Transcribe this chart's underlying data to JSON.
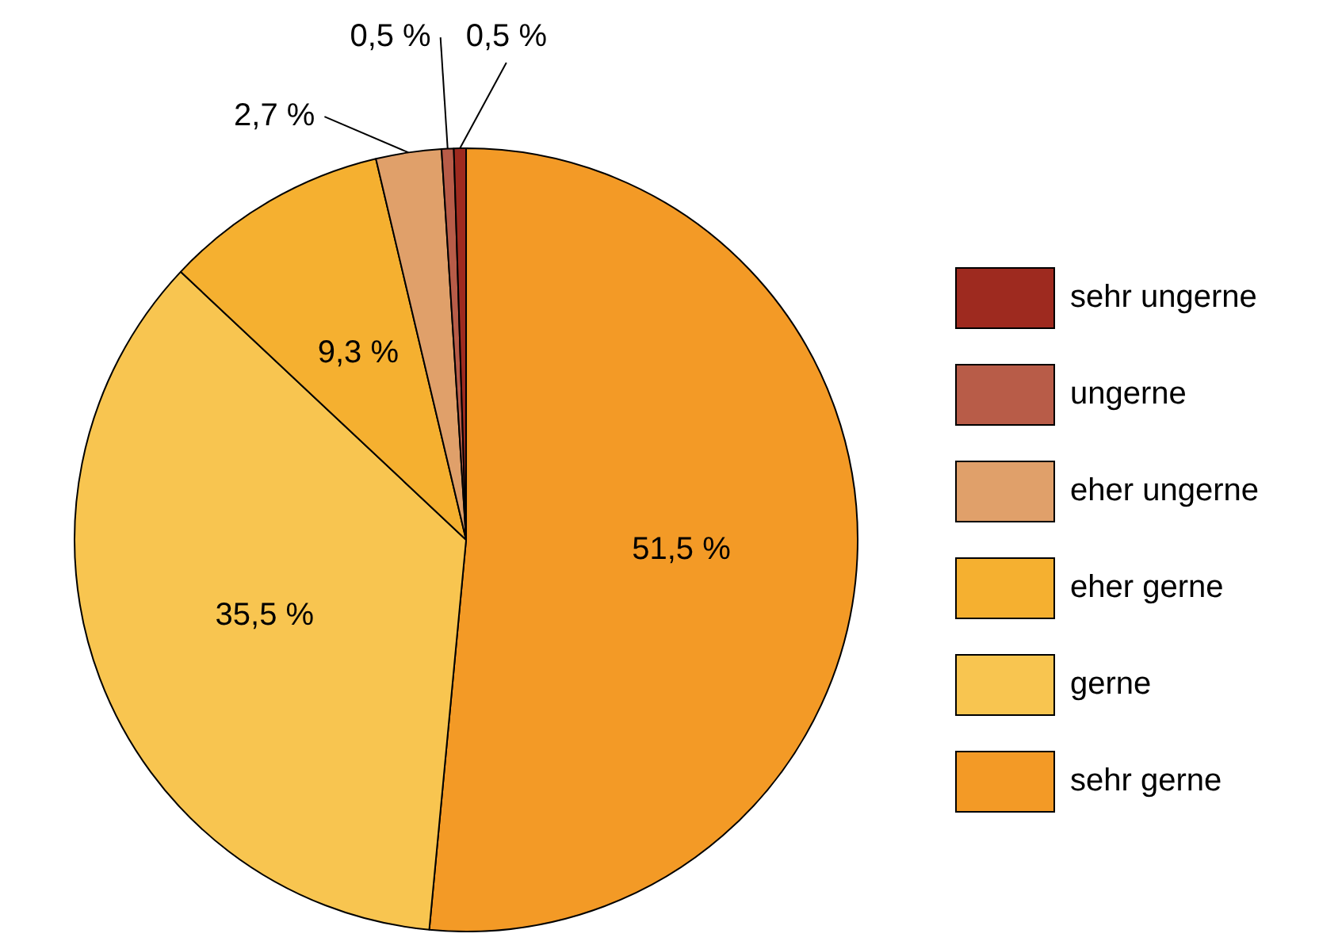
{
  "chart_data": {
    "type": "pie",
    "categories": [
      "sehr gerne",
      "gerne",
      "eher gerne",
      "eher ungerne",
      "ungerne",
      "sehr ungerne"
    ],
    "values": [
      51.5,
      35.5,
      9.3,
      2.7,
      0.5,
      0.5
    ],
    "value_labels": [
      "51,5 %",
      "35,5 %",
      "9,3 %",
      "2,7 %",
      "0,5 %",
      "0,5 %"
    ],
    "colors": [
      "#f39a26",
      "#f8c550",
      "#f5b030",
      "#e0a06a",
      "#b85c48",
      "#9e2a1f"
    ],
    "legend": "right"
  }
}
